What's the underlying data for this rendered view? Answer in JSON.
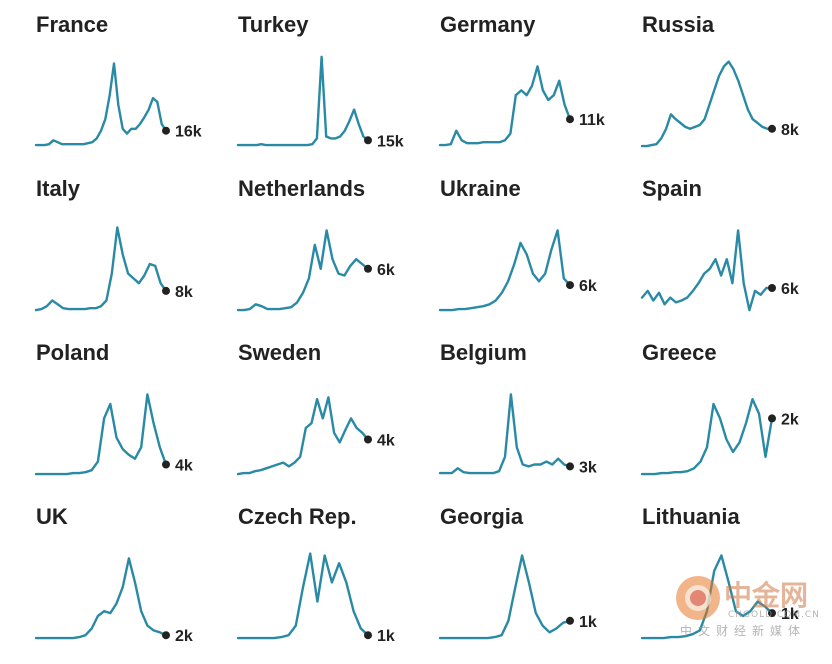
{
  "style": {
    "line_color": "#2a8aa5",
    "dot_color": "#222222",
    "title_color": "#222222"
  },
  "chart_data": [
    {
      "type": "line",
      "title": "France",
      "end_label": "16k",
      "ylim": [
        0,
        100
      ],
      "y": [
        3,
        3,
        3,
        4,
        8,
        6,
        4,
        4,
        4,
        4,
        4,
        4,
        5,
        6,
        10,
        18,
        30,
        55,
        88,
        45,
        20,
        15,
        20,
        20,
        25,
        32,
        40,
        52,
        48,
        25,
        18
      ]
    },
    {
      "type": "line",
      "title": "Turkey",
      "end_label": "15k",
      "ylim": [
        0,
        100
      ],
      "y": [
        3,
        3,
        3,
        3,
        3,
        4,
        3,
        3,
        3,
        3,
        3,
        3,
        3,
        3,
        3,
        3,
        4,
        10,
        95,
        12,
        10,
        10,
        12,
        18,
        28,
        40,
        25,
        12,
        8
      ]
    },
    {
      "type": "line",
      "title": "Germany",
      "end_label": "11k",
      "ylim": [
        0,
        100
      ],
      "y": [
        3,
        3,
        4,
        18,
        8,
        5,
        5,
        5,
        6,
        6,
        6,
        6,
        8,
        15,
        55,
        60,
        55,
        65,
        85,
        60,
        50,
        55,
        70,
        45,
        30
      ]
    },
    {
      "type": "line",
      "title": "Russia",
      "end_label": "8k",
      "ylim": [
        0,
        100
      ],
      "y": [
        2,
        2,
        3,
        4,
        10,
        20,
        35,
        30,
        26,
        22,
        20,
        22,
        24,
        30,
        45,
        60,
        75,
        85,
        90,
        82,
        70,
        55,
        40,
        30,
        26,
        22,
        20,
        20
      ]
    },
    {
      "type": "line",
      "title": "Italy",
      "end_label": "8k",
      "ylim": [
        0,
        100
      ],
      "y": [
        2,
        3,
        6,
        12,
        8,
        4,
        3,
        3,
        3,
        3,
        4,
        4,
        6,
        12,
        40,
        88,
        60,
        40,
        35,
        30,
        38,
        50,
        48,
        30,
        22
      ]
    },
    {
      "type": "line",
      "title": "Netherlands",
      "end_label": "6k",
      "ylim": [
        0,
        100
      ],
      "y": [
        2,
        2,
        3,
        8,
        6,
        3,
        3,
        3,
        4,
        5,
        10,
        20,
        35,
        70,
        45,
        85,
        55,
        40,
        38,
        48,
        55,
        50,
        45
      ]
    },
    {
      "type": "line",
      "title": "Ukraine",
      "end_label": "6k",
      "ylim": [
        0,
        100
      ],
      "y": [
        2,
        2,
        2,
        3,
        3,
        4,
        5,
        6,
        8,
        12,
        20,
        32,
        50,
        72,
        60,
        40,
        32,
        40,
        65,
        85,
        35,
        28
      ]
    },
    {
      "type": "line",
      "title": "Spain",
      "end_label": "6k",
      "ylim": [
        0,
        100
      ],
      "y": [
        15,
        22,
        12,
        20,
        8,
        15,
        10,
        12,
        15,
        22,
        30,
        40,
        45,
        55,
        38,
        55,
        30,
        85,
        30,
        2,
        22,
        18,
        25,
        25
      ]
    },
    {
      "type": "line",
      "title": "Poland",
      "end_label": "4k",
      "ylim": [
        0,
        100
      ],
      "y": [
        2,
        2,
        2,
        2,
        2,
        2,
        3,
        3,
        4,
        6,
        15,
        60,
        75,
        40,
        28,
        22,
        18,
        30,
        85,
        55,
        30,
        12
      ]
    },
    {
      "type": "line",
      "title": "Sweden",
      "end_label": "4k",
      "ylim": [
        0,
        100
      ],
      "y": [
        2,
        3,
        3,
        5,
        6,
        8,
        10,
        12,
        14,
        10,
        14,
        20,
        50,
        55,
        80,
        60,
        82,
        45,
        35,
        48,
        60,
        50,
        45,
        38
      ]
    },
    {
      "type": "line",
      "title": "Belgium",
      "end_label": "3k",
      "ylim": [
        0,
        100
      ],
      "y": [
        3,
        3,
        3,
        8,
        4,
        3,
        3,
        3,
        3,
        3,
        5,
        20,
        85,
        30,
        12,
        10,
        12,
        12,
        15,
        12,
        18,
        12,
        10
      ]
    },
    {
      "type": "line",
      "title": "Greece",
      "end_label": "2k",
      "ylim": [
        0,
        100
      ],
      "y": [
        2,
        2,
        2,
        3,
        3,
        4,
        4,
        5,
        8,
        15,
        30,
        75,
        60,
        38,
        25,
        35,
        55,
        80,
        65,
        20,
        60
      ]
    },
    {
      "type": "line",
      "title": "UK",
      "end_label": "2k",
      "ylim": [
        0,
        100
      ],
      "y": [
        2,
        2,
        2,
        2,
        2,
        2,
        2,
        3,
        5,
        12,
        25,
        30,
        28,
        38,
        55,
        85,
        60,
        30,
        15,
        10,
        8,
        5
      ]
    },
    {
      "type": "line",
      "title": "Czech Rep.",
      "end_label": "1k",
      "ylim": [
        0,
        100
      ],
      "y": [
        2,
        2,
        2,
        2,
        2,
        2,
        3,
        5,
        15,
        55,
        90,
        40,
        88,
        60,
        80,
        60,
        30,
        12,
        5
      ]
    },
    {
      "type": "line",
      "title": "Georgia",
      "end_label": "1k",
      "ylim": [
        0,
        100
      ],
      "y": [
        2,
        2,
        2,
        2,
        2,
        2,
        2,
        2,
        3,
        5,
        20,
        55,
        88,
        60,
        28,
        15,
        8,
        12,
        18,
        20
      ]
    },
    {
      "type": "line",
      "title": "Lithuania",
      "end_label": "1k",
      "ylim": [
        0,
        100
      ],
      "y": [
        2,
        2,
        2,
        2,
        3,
        3,
        4,
        6,
        10,
        30,
        72,
        88,
        60,
        30,
        25,
        30,
        40,
        35,
        28
      ]
    }
  ],
  "watermark": {
    "name": "中金网",
    "domain": "CNGOLD.COM.CN",
    "slogan": "中文财经新媒体"
  }
}
